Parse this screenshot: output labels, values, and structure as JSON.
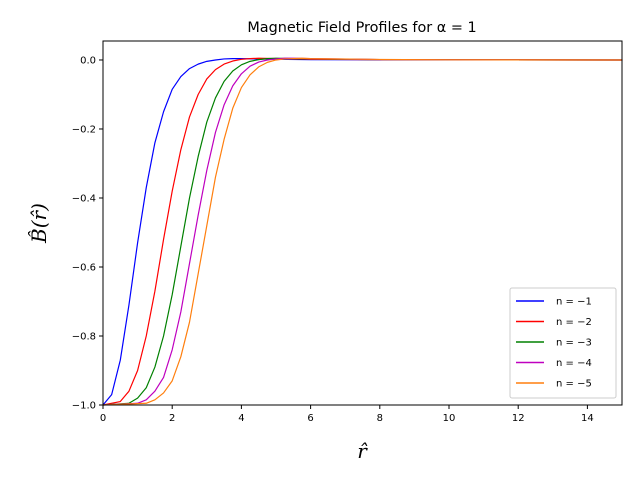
{
  "chart_data": {
    "type": "line",
    "title": "Magnetic Field Profiles for α = 1",
    "xlabel": "r̂",
    "ylabel": "B̂(r̂)",
    "xlim": [
      0,
      15
    ],
    "ylim": [
      -1.0,
      0.055
    ],
    "xticks": [
      0,
      2,
      4,
      6,
      8,
      10,
      12,
      14
    ],
    "xtick_labels": [
      "0",
      "2",
      "4",
      "6",
      "8",
      "10",
      "12",
      "14"
    ],
    "yticks": [
      0.0,
      -0.2,
      -0.4,
      -0.6,
      -0.8,
      -1.0
    ],
    "ytick_labels": [
      "0.0",
      "−0.2",
      "−0.4",
      "−0.6",
      "−0.8",
      "−1.0"
    ],
    "legend_position": "lower-right",
    "grid": false,
    "series": [
      {
        "name": "n = −1",
        "color": "#0000ff",
        "x": [
          0,
          0.25,
          0.5,
          0.75,
          1.0,
          1.25,
          1.5,
          1.75,
          2.0,
          2.25,
          2.5,
          2.75,
          3.0,
          3.25,
          3.5,
          3.75,
          4.0,
          4.5,
          5.0,
          6.0,
          8.0,
          10.0,
          15.0
        ],
        "y": [
          -1.0,
          -0.97,
          -0.87,
          -0.71,
          -0.53,
          -0.37,
          -0.24,
          -0.15,
          -0.085,
          -0.048,
          -0.025,
          -0.012,
          -0.004,
          0.0,
          0.003,
          0.004,
          0.004,
          0.003,
          0.002,
          0.001,
          0.0005,
          0.0002,
          0.0
        ]
      },
      {
        "name": "n = −2",
        "color": "#ff0000",
        "x": [
          0,
          0.5,
          0.75,
          1.0,
          1.25,
          1.5,
          1.75,
          2.0,
          2.25,
          2.5,
          2.75,
          3.0,
          3.25,
          3.5,
          3.75,
          4.0,
          4.25,
          4.5,
          5.0,
          6.0,
          8.0,
          10.0,
          15.0
        ],
        "y": [
          -1.0,
          -0.99,
          -0.96,
          -0.9,
          -0.8,
          -0.67,
          -0.52,
          -0.38,
          -0.26,
          -0.165,
          -0.1,
          -0.055,
          -0.028,
          -0.012,
          -0.003,
          0.002,
          0.004,
          0.005,
          0.004,
          0.002,
          0.001,
          0.0003,
          0.0
        ]
      },
      {
        "name": "n = −3",
        "color": "#008000",
        "x": [
          0,
          0.75,
          1.0,
          1.25,
          1.5,
          1.75,
          2.0,
          2.25,
          2.5,
          2.75,
          3.0,
          3.25,
          3.5,
          3.75,
          4.0,
          4.25,
          4.5,
          4.75,
          5.0,
          5.5,
          6.0,
          8.0,
          10.0,
          15.0
        ],
        "y": [
          -1.0,
          -0.995,
          -0.98,
          -0.95,
          -0.89,
          -0.8,
          -0.68,
          -0.54,
          -0.4,
          -0.28,
          -0.18,
          -0.11,
          -0.062,
          -0.032,
          -0.014,
          -0.004,
          0.001,
          0.004,
          0.005,
          0.004,
          0.003,
          0.001,
          0.0004,
          0.0
        ]
      },
      {
        "name": "n = −4",
        "color": "#bf00bf",
        "x": [
          0,
          1.0,
          1.25,
          1.5,
          1.75,
          2.0,
          2.25,
          2.5,
          2.75,
          3.0,
          3.25,
          3.5,
          3.75,
          4.0,
          4.25,
          4.5,
          4.75,
          5.0,
          5.25,
          5.5,
          6.0,
          8.0,
          10.0,
          15.0
        ],
        "y": [
          -1.0,
          -0.995,
          -0.985,
          -0.96,
          -0.92,
          -0.84,
          -0.73,
          -0.59,
          -0.45,
          -0.32,
          -0.21,
          -0.13,
          -0.075,
          -0.04,
          -0.018,
          -0.006,
          0.0,
          0.003,
          0.005,
          0.005,
          0.004,
          0.001,
          0.0005,
          0.0
        ]
      },
      {
        "name": "n = −5",
        "color": "#ff7f0e",
        "x": [
          0,
          1.25,
          1.5,
          1.75,
          2.0,
          2.25,
          2.5,
          2.75,
          3.0,
          3.25,
          3.5,
          3.75,
          4.0,
          4.25,
          4.5,
          4.75,
          5.0,
          5.25,
          5.5,
          5.75,
          6.0,
          8.0,
          10.0,
          15.0
        ],
        "y": [
          -1.0,
          -0.995,
          -0.985,
          -0.965,
          -0.93,
          -0.86,
          -0.76,
          -0.62,
          -0.48,
          -0.34,
          -0.23,
          -0.14,
          -0.08,
          -0.043,
          -0.02,
          -0.007,
          0.0,
          0.003,
          0.004,
          0.005,
          0.004,
          0.0015,
          0.0005,
          0.0
        ]
      }
    ]
  }
}
